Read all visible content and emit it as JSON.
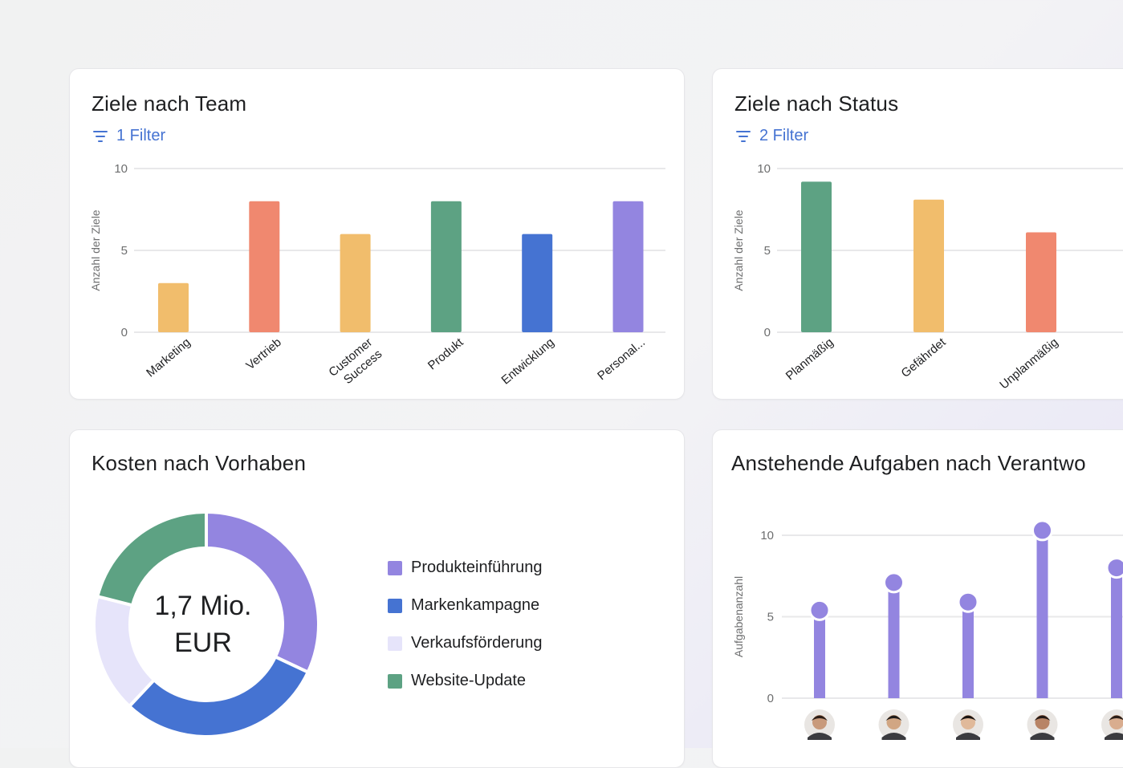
{
  "cards": {
    "team": {
      "title": "Ziele nach Team",
      "filter": "1 Filter"
    },
    "status": {
      "title": "Ziele nach Status",
      "filter": "2 Filter"
    },
    "costs": {
      "title": "Kosten nach Vorhaben",
      "center_line1": "1,7 Mio.",
      "center_line2": "EUR"
    },
    "tasks": {
      "title": "Anstehende Aufgaben nach Verantwo"
    }
  },
  "icons": {
    "filter": "filter-icon",
    "avatar": "user-avatar-icon"
  },
  "chart_data": [
    {
      "id": "team",
      "type": "bar",
      "ylabel": "Anzahl der Ziele",
      "xlabel": "",
      "ylim": [
        0,
        10
      ],
      "yticks": [
        "0",
        "5",
        "10"
      ],
      "grid": true,
      "categories": [
        "Marketing",
        "Vertrieb",
        "Customer Success",
        "Produkt",
        "Entwicklung",
        "Personal..."
      ],
      "values": [
        3,
        8,
        6,
        8,
        6,
        8
      ],
      "colors": [
        "#f1bd6c",
        "#f0886f",
        "#f1bd6c",
        "#5da283",
        "#4573d2",
        "#9385e0"
      ]
    },
    {
      "id": "status",
      "type": "bar",
      "ylabel": "Anzahl der Ziele",
      "xlabel": "",
      "ylim": [
        0,
        10
      ],
      "yticks": [
        "0",
        "5",
        "10"
      ],
      "grid": true,
      "categories": [
        "Planmäßig",
        "Gefährdet",
        "Unplanmäßig"
      ],
      "values": [
        9.2,
        8.1,
        6.1
      ],
      "colors": [
        "#5da283",
        "#f1bd6c",
        "#f0886f"
      ]
    },
    {
      "id": "costs",
      "type": "pie",
      "categories": [
        "Produkteinführung",
        "Markenkampagne",
        "Verkaufsförderung",
        "Website-Update"
      ],
      "values": [
        32,
        30,
        17,
        21
      ],
      "colors": [
        "#9385e0",
        "#4573d2",
        "#e6e4fa",
        "#5da283"
      ],
      "legend": "right"
    },
    {
      "id": "tasks",
      "type": "bar",
      "ylabel": "Aufgabenanzahl",
      "xlabel": "",
      "ylim": [
        0,
        10
      ],
      "yticks": [
        "0",
        "5",
        "10"
      ],
      "grid": true,
      "categories": [
        "",
        "",
        "",
        "",
        ""
      ],
      "values": [
        5.4,
        7.1,
        5.9,
        10.3,
        8
      ],
      "colors": [
        "#9385e0"
      ]
    }
  ]
}
